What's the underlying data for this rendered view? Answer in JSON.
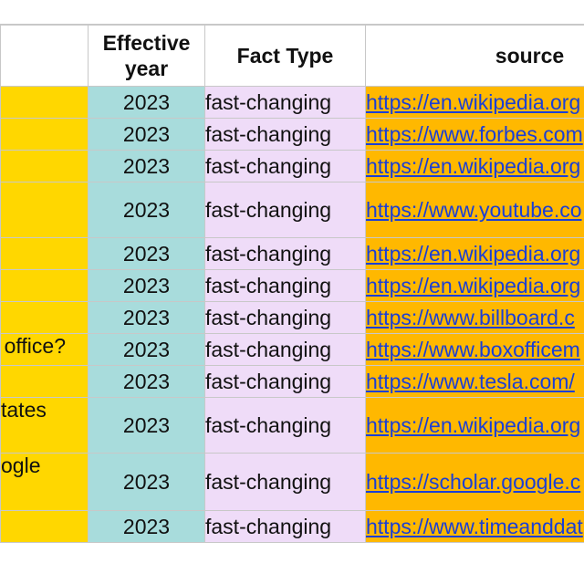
{
  "header": {
    "question": "",
    "effective_year": "Effective year",
    "fact_type": "Fact Type",
    "source": "source"
  },
  "rows": [
    {
      "question": "",
      "year": "2023",
      "type": "fast-changing",
      "source": "https://en.wikipedia.org"
    },
    {
      "question": "",
      "year": "2023",
      "type": "fast-changing",
      "source": "https://www.forbes.com"
    },
    {
      "question": "",
      "year": "2023",
      "type": "fast-changing",
      "source": "https://en.wikipedia.org"
    },
    {
      "question": "",
      "year": "2023",
      "type": "fast-changing",
      "source": "https://www.youtube.co"
    },
    {
      "question": "",
      "year": "2023",
      "type": "fast-changing",
      "source": "https://en.wikipedia.org"
    },
    {
      "question": "",
      "year": "2023",
      "type": "fast-changing",
      "source": "https://en.wikipedia.org"
    },
    {
      "question": "",
      "year": "2023",
      "type": "fast-changing",
      "source": "https://www.billboard.c"
    },
    {
      "question": "office?",
      "year": "2023",
      "type": "fast-changing",
      "source": "https://www.boxofficem"
    },
    {
      "question": "",
      "year": "2023",
      "type": "fast-changing",
      "source": "https://www.tesla.com/"
    },
    {
      "question": "tates",
      "year": "2023",
      "type": "fast-changing",
      "source": "https://en.wikipedia.org"
    },
    {
      "question": "ogle",
      "year": "2023",
      "type": "fast-changing",
      "source": "https://scholar.google.c"
    },
    {
      "question": "",
      "year": "2023",
      "type": "fast-changing",
      "source": "https://www.timeanddat"
    }
  ],
  "colors": {
    "question_bg": "#ffd700",
    "year_bg": "#a8dcdc",
    "type_bg": "#efdcf8",
    "source_bg": "#ffb800",
    "link": "#1a3fd6"
  }
}
